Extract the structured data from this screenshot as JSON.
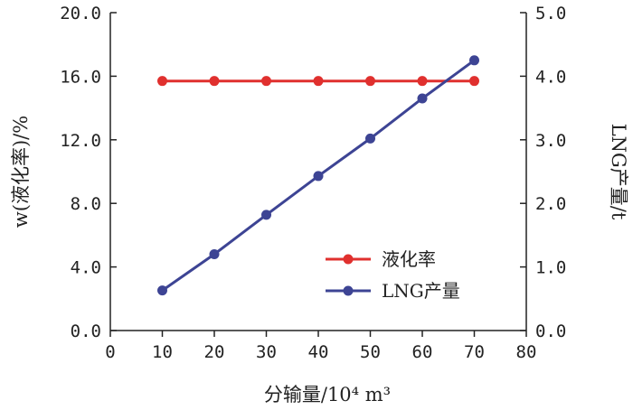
{
  "chart_data": {
    "type": "line",
    "x": [
      10,
      20,
      30,
      40,
      50,
      60,
      70
    ],
    "xlabel": "分输量/10⁴ m³",
    "xlim": [
      0,
      80
    ],
    "xticks": [
      "0",
      "10",
      "20",
      "30",
      "40",
      "50",
      "60",
      "70",
      "80"
    ],
    "ylabel_left": "w(液化率)/%",
    "ylim_left": [
      0,
      20
    ],
    "yticks_left": [
      "0.0",
      "4.0",
      "8.0",
      "12.0",
      "16.0",
      "20.0"
    ],
    "ylabel_right": "LNG产量/t",
    "ylim_right": [
      0,
      5
    ],
    "yticks_right": [
      "0.0",
      "1.0",
      "2.0",
      "3.0",
      "4.0",
      "5.0"
    ],
    "series": [
      {
        "name": "液化率",
        "axis": "left",
        "color": "#e0302e",
        "values": [
          15.7,
          15.7,
          15.7,
          15.7,
          15.7,
          15.7,
          15.7
        ]
      },
      {
        "name": "LNG产量",
        "axis": "right",
        "color": "#3d4494",
        "values": [
          0.63,
          1.2,
          1.82,
          2.43,
          3.02,
          3.65,
          4.25
        ]
      }
    ],
    "legend": "center-right",
    "grid": false
  }
}
